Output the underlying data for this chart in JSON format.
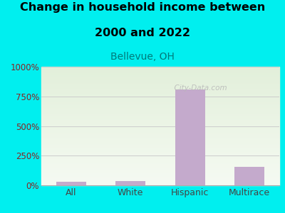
{
  "title_line1": "Change in household income between",
  "title_line2": "2000 and 2022",
  "subtitle": "Bellevue, OH",
  "categories": [
    "All",
    "White",
    "Hispanic",
    "Multirace"
  ],
  "values": [
    30,
    35,
    810,
    155
  ],
  "bar_color": "#C4AACC",
  "background_color": "#00EFEF",
  "plot_bg_top": "#e2efda",
  "plot_bg_bottom": "#f5faf2",
  "title_fontsize": 11.5,
  "subtitle_fontsize": 10,
  "ytick_color": "#8B2222",
  "xtick_color": "#444444",
  "yticks": [
    0,
    250,
    500,
    750,
    1000
  ],
  "ytick_labels": [
    "0%",
    "250%",
    "500%",
    "750%",
    "1000%"
  ],
  "ylim": [
    0,
    1000
  ],
  "watermark": "  City-Data.com"
}
